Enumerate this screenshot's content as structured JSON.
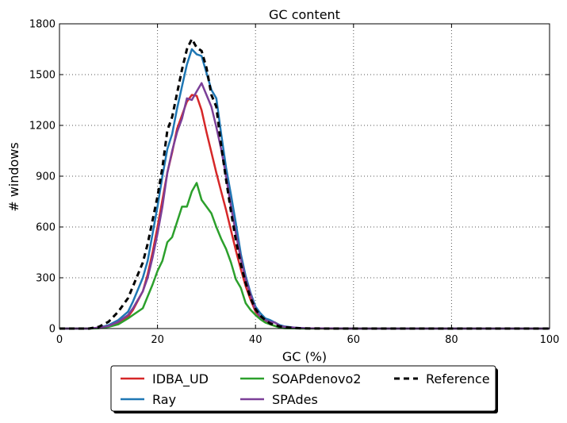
{
  "chart_data": {
    "type": "line",
    "title": "GC content",
    "xlabel": "GC (%)",
    "ylabel": "# windows",
    "xlim": [
      0,
      100
    ],
    "ylim": [
      0,
      1800
    ],
    "xticks": [
      0,
      20,
      40,
      60,
      80,
      100
    ],
    "yticks": [
      0,
      300,
      600,
      900,
      1200,
      1500,
      1800
    ],
    "grid": true,
    "legend_position": "bottom-center",
    "series": [
      {
        "name": "IDBA_UD",
        "color": "#d62728",
        "dashed": false,
        "x": [
          0,
          4,
          6,
          8,
          10,
          12,
          14,
          15,
          17,
          18,
          19,
          20,
          21,
          22,
          23,
          24,
          25,
          26,
          27,
          28,
          29,
          30,
          31,
          32,
          33,
          34,
          35,
          36,
          37,
          38,
          39,
          40,
          41,
          42,
          43,
          44,
          45,
          46,
          48,
          50,
          55,
          60,
          70,
          80,
          90,
          100
        ],
        "y": [
          0,
          0,
          0,
          5,
          15,
          35,
          70,
          110,
          220,
          320,
          450,
          600,
          760,
          920,
          1040,
          1180,
          1260,
          1340,
          1380,
          1375,
          1290,
          1160,
          1040,
          920,
          810,
          700,
          580,
          460,
          350,
          250,
          170,
          100,
          65,
          40,
          25,
          15,
          10,
          6,
          3,
          1,
          0,
          0,
          0,
          0,
          0,
          0
        ]
      },
      {
        "name": "Ray",
        "color": "#1f77b4",
        "dashed": false,
        "x": [
          0,
          4,
          6,
          8,
          10,
          12,
          14,
          15,
          17,
          18,
          19,
          20,
          21,
          22,
          23,
          24,
          25,
          26,
          27,
          28,
          29,
          30,
          31,
          32,
          33,
          34,
          35,
          36,
          37,
          38,
          39,
          40,
          41,
          42,
          43,
          44,
          45,
          46,
          48,
          50,
          55,
          60,
          70,
          80,
          90,
          100
        ],
        "y": [
          0,
          0,
          0,
          5,
          20,
          50,
          100,
          160,
          300,
          400,
          560,
          720,
          900,
          1060,
          1150,
          1300,
          1430,
          1560,
          1650,
          1620,
          1610,
          1510,
          1410,
          1360,
          1150,
          950,
          790,
          620,
          440,
          310,
          210,
          130,
          90,
          60,
          50,
          35,
          20,
          12,
          5,
          2,
          1,
          0,
          0,
          0,
          0,
          0
        ]
      },
      {
        "name": "SOAPdenovo2",
        "color": "#2ca02c",
        "dashed": false,
        "x": [
          0,
          4,
          6,
          8,
          10,
          12,
          14,
          15,
          17,
          18,
          19,
          20,
          21,
          22,
          23,
          24,
          25,
          26,
          27,
          28,
          29,
          30,
          31,
          32,
          33,
          34,
          35,
          36,
          37,
          38,
          39,
          40,
          41,
          42,
          43,
          44,
          45,
          46,
          48,
          50,
          55,
          60,
          70,
          80,
          90,
          100
        ],
        "y": [
          0,
          0,
          0,
          2,
          10,
          25,
          60,
          80,
          120,
          190,
          260,
          340,
          400,
          510,
          540,
          630,
          720,
          720,
          810,
          860,
          760,
          720,
          680,
          600,
          530,
          470,
          390,
          290,
          240,
          150,
          110,
          80,
          55,
          35,
          25,
          15,
          5,
          2,
          1,
          0,
          0,
          0,
          0,
          0,
          0,
          0
        ]
      },
      {
        "name": "SPAdes",
        "color": "#7b3f98",
        "dashed": false,
        "x": [
          0,
          4,
          6,
          8,
          10,
          12,
          14,
          15,
          17,
          18,
          19,
          20,
          21,
          22,
          23,
          24,
          25,
          26,
          27,
          28,
          29,
          30,
          31,
          32,
          33,
          34,
          35,
          36,
          37,
          38,
          39,
          40,
          41,
          42,
          43,
          44,
          45,
          46,
          48,
          50,
          55,
          60,
          70,
          80,
          90,
          100
        ],
        "y": [
          0,
          0,
          0,
          5,
          15,
          40,
          80,
          120,
          220,
          300,
          420,
          560,
          720,
          920,
          1050,
          1160,
          1240,
          1360,
          1350,
          1400,
          1450,
          1380,
          1310,
          1190,
          1060,
          900,
          720,
          560,
          410,
          290,
          200,
          110,
          70,
          50,
          40,
          35,
          15,
          10,
          5,
          2,
          1,
          0,
          0,
          0,
          0,
          0
        ]
      },
      {
        "name": "Reference",
        "color": "#000000",
        "dashed": true,
        "x": [
          0,
          4,
          6,
          8,
          10,
          12,
          14,
          15,
          17,
          18,
          19,
          20,
          21,
          22,
          23,
          24,
          25,
          26,
          27,
          28,
          29,
          30,
          31,
          32,
          33,
          34,
          35,
          36,
          37,
          38,
          39,
          40,
          41,
          42,
          43,
          44,
          45,
          46,
          48,
          50,
          55,
          60,
          70,
          80,
          90,
          100
        ],
        "y": [
          0,
          0,
          0,
          10,
          40,
          100,
          180,
          250,
          390,
          500,
          640,
          780,
          950,
          1170,
          1250,
          1390,
          1530,
          1650,
          1710,
          1660,
          1640,
          1540,
          1380,
          1310,
          1080,
          880,
          690,
          520,
          380,
          270,
          180,
          115,
          75,
          50,
          30,
          20,
          12,
          8,
          3,
          1,
          0,
          0,
          0,
          0,
          0,
          0
        ]
      }
    ]
  }
}
